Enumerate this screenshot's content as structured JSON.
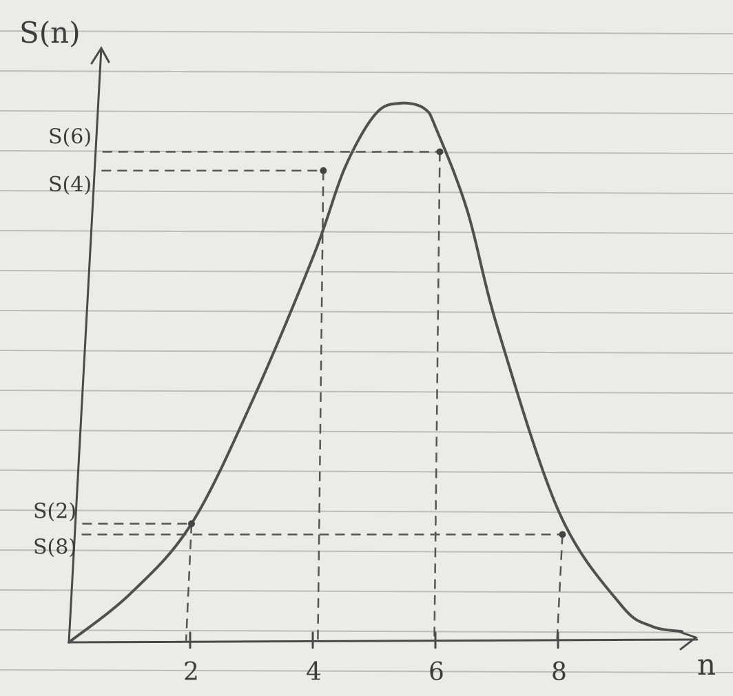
{
  "chart_data": {
    "type": "line",
    "title": "",
    "ylabel": "S(n)",
    "xlabel": "n",
    "x_ticks": [
      {
        "value": 2,
        "label": "2"
      },
      {
        "value": 4,
        "label": "4"
      },
      {
        "value": 6,
        "label": "6"
      },
      {
        "value": 8,
        "label": "8"
      }
    ],
    "y_labels": [
      {
        "key": "s6",
        "label": "S(6)"
      },
      {
        "key": "s4",
        "label": "S(4)"
      },
      {
        "key": "s2",
        "label": "S(2)"
      },
      {
        "key": "s8",
        "label": "S(8)"
      }
    ],
    "xlim": [
      0,
      10.3
    ],
    "ylim": [
      0,
      1
    ],
    "curve": {
      "x": [
        0,
        1,
        2,
        3,
        4,
        4.5,
        5,
        5.4,
        5.8,
        6,
        6.5,
        7,
        8,
        9,
        9.5,
        10
      ],
      "y": [
        0,
        0.09,
        0.22,
        0.45,
        0.72,
        0.88,
        0.98,
        1.0,
        0.99,
        0.95,
        0.8,
        0.58,
        0.24,
        0.07,
        0.03,
        0.02
      ]
    },
    "marked_points": [
      {
        "x": 2,
        "y": 0.22,
        "label_key": "s2"
      },
      {
        "x": 4.15,
        "y": 0.875,
        "label_key": "s4"
      },
      {
        "x": 6.05,
        "y": 0.91,
        "label_key": "s6"
      },
      {
        "x": 8.05,
        "y": 0.2,
        "label_key": "s8"
      }
    ],
    "grid": false,
    "legend": "none"
  },
  "colors": {
    "paper": "#ecebe7",
    "rule": "#bdbcb8",
    "ink": "#4a4a4a"
  }
}
